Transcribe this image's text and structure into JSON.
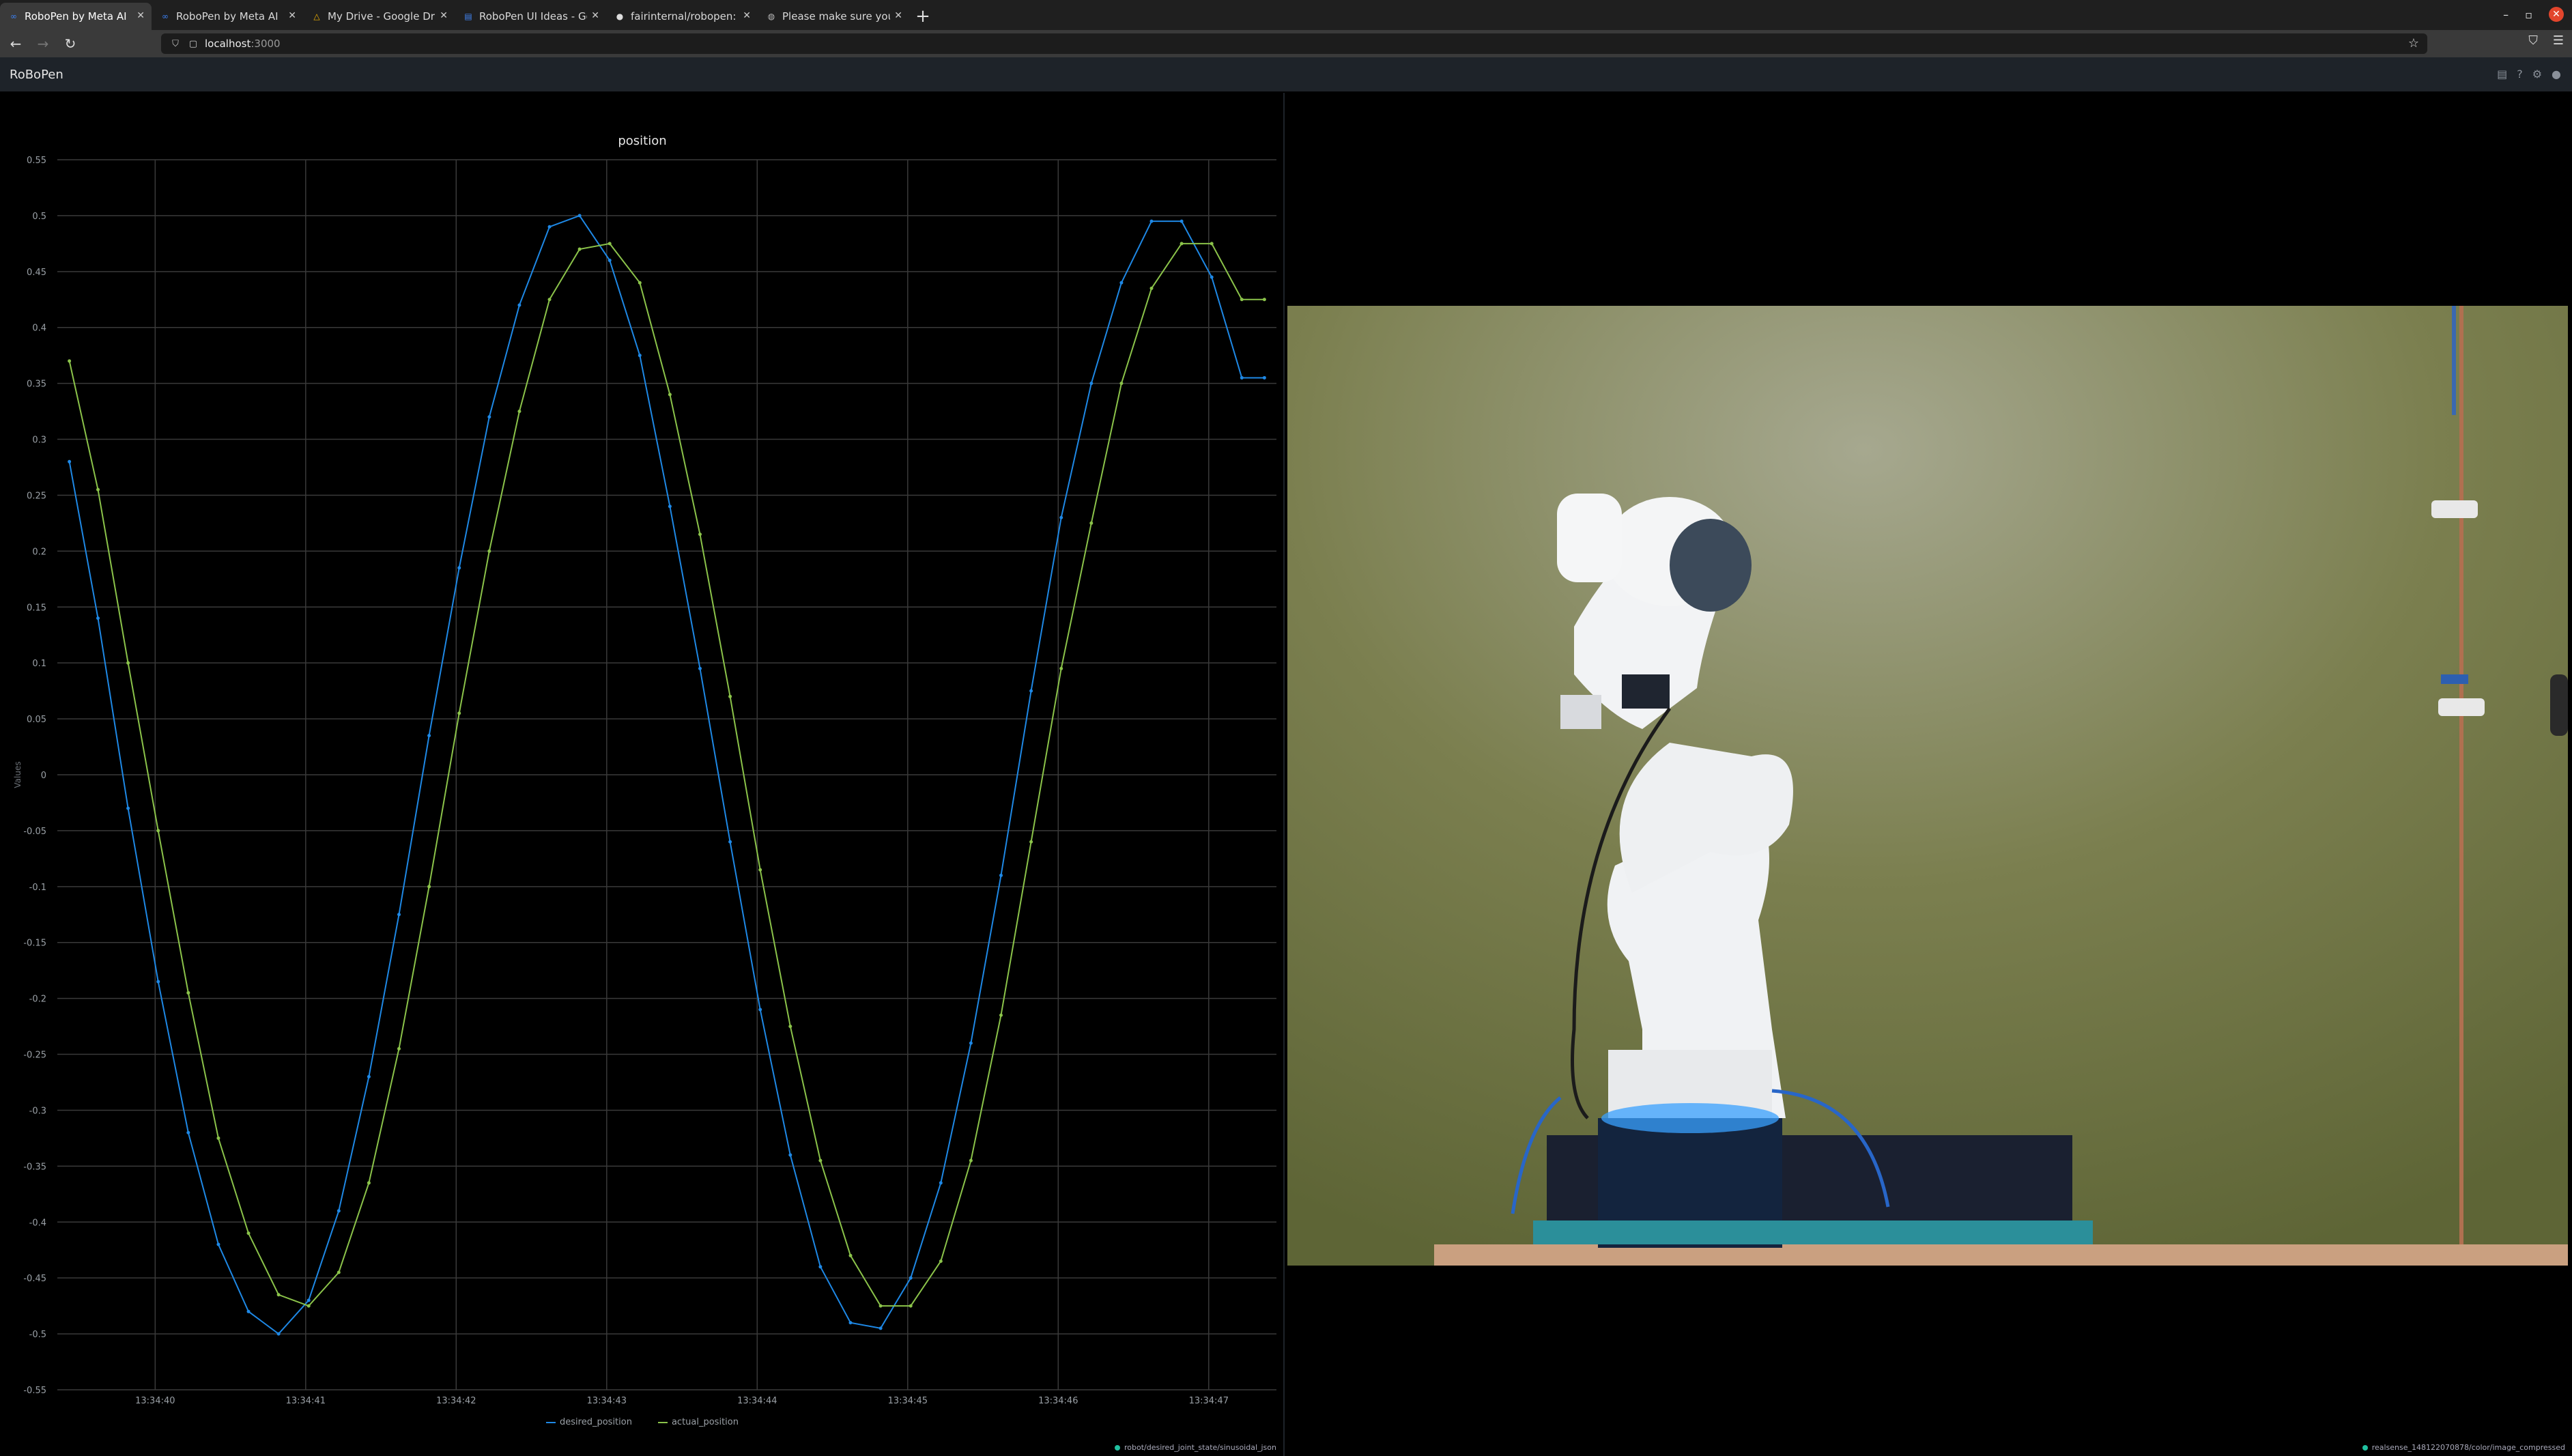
{
  "browser": {
    "tabs": [
      {
        "title": "RoboPen by Meta AI",
        "icon": "meta-logo-icon",
        "active": true
      },
      {
        "title": "RoboPen by Meta AI",
        "icon": "meta-logo-icon",
        "active": false
      },
      {
        "title": "My Drive - Google Drive",
        "icon": "google-drive-icon",
        "active": false
      },
      {
        "title": "RoboPen UI Ideas - Goog",
        "icon": "google-docs-icon",
        "active": false
      },
      {
        "title": "fairinternal/robopen: Ro",
        "icon": "github-icon",
        "active": false
      },
      {
        "title": "Please make sure you ha",
        "icon": "globe-icon",
        "active": false
      }
    ],
    "new_tab_label": "+",
    "url": {
      "host": "localhost",
      "port": ":3000"
    }
  },
  "app": {
    "title": "RoBoPen",
    "header_icons": [
      "layout-icon",
      "help-icon",
      "settings-icon",
      "github-icon"
    ]
  },
  "left_panel": {
    "entity_path": "robot/desired_joint_state/sinusoidal_json"
  },
  "right_panel": {
    "entity_path": "realsense_148122070878/color/image_compressed"
  },
  "chart_data": {
    "type": "line",
    "title": "position",
    "ylabel": "Values",
    "xlabel": "",
    "ylim": [
      -0.55,
      0.55
    ],
    "yticks": [
      0.55,
      0.5,
      0.45,
      0.4,
      0.35,
      0.3,
      0.25,
      0.2,
      0.15,
      0.1,
      0.05,
      0,
      -0.05,
      -0.1,
      -0.15,
      -0.2,
      -0.25,
      -0.3,
      -0.35,
      -0.4,
      -0.45,
      -0.5,
      -0.55
    ],
    "xlim": [
      39.35,
      47.45
    ],
    "xticks": [
      "13:34:40",
      "13:34:41",
      "13:34:42",
      "13:34:43",
      "13:34:44",
      "13:34:45",
      "13:34:46",
      "13:34:47"
    ],
    "xtick_values": [
      40,
      41,
      42,
      43,
      44,
      45,
      46,
      47
    ],
    "grid": true,
    "legend": "bottom-center",
    "series": [
      {
        "name": "desired_position",
        "color": "#1e88e5",
        "x": [
          39.43,
          39.62,
          39.82,
          40.02,
          40.22,
          40.42,
          40.62,
          40.82,
          41.02,
          41.22,
          41.42,
          41.62,
          41.82,
          42.02,
          42.22,
          42.42,
          42.62,
          42.82,
          43.02,
          43.22,
          43.42,
          43.62,
          43.82,
          44.02,
          44.22,
          44.42,
          44.62,
          44.82,
          45.02,
          45.22,
          45.42,
          45.62,
          45.82,
          46.02,
          46.22,
          46.42,
          46.62,
          46.82,
          47.02,
          47.22,
          47.37
        ],
        "y": [
          0.28,
          0.14,
          -0.03,
          -0.185,
          -0.32,
          -0.42,
          -0.48,
          -0.5,
          -0.47,
          -0.39,
          -0.27,
          -0.125,
          0.035,
          0.185,
          0.32,
          0.42,
          0.49,
          0.5,
          0.46,
          0.375,
          0.24,
          0.095,
          -0.06,
          -0.21,
          -0.34,
          -0.44,
          -0.49,
          -0.495,
          -0.45,
          -0.365,
          -0.24,
          -0.09,
          0.075,
          0.23,
          0.35,
          0.44,
          0.495,
          0.495,
          0.445,
          0.355,
          0.355
        ]
      },
      {
        "name": "actual_position",
        "color": "#8bc34a",
        "x": [
          39.43,
          39.62,
          39.82,
          40.02,
          40.22,
          40.42,
          40.62,
          40.82,
          41.02,
          41.22,
          41.42,
          41.62,
          41.82,
          42.02,
          42.22,
          42.42,
          42.62,
          42.82,
          43.02,
          43.22,
          43.42,
          43.62,
          43.82,
          44.02,
          44.22,
          44.42,
          44.62,
          44.82,
          45.02,
          45.22,
          45.42,
          45.62,
          45.82,
          46.02,
          46.22,
          46.42,
          46.62,
          46.82,
          47.02,
          47.22,
          47.37
        ],
        "y": [
          0.37,
          0.255,
          0.1,
          -0.05,
          -0.195,
          -0.325,
          -0.41,
          -0.465,
          -0.475,
          -0.445,
          -0.365,
          -0.245,
          -0.1,
          0.055,
          0.2,
          0.325,
          0.425,
          0.47,
          0.475,
          0.44,
          0.34,
          0.215,
          0.07,
          -0.085,
          -0.225,
          -0.345,
          -0.43,
          -0.475,
          -0.475,
          -0.435,
          -0.345,
          -0.215,
          -0.06,
          0.095,
          0.225,
          0.35,
          0.435,
          0.475,
          0.475,
          0.425,
          0.425
        ]
      }
    ]
  },
  "colors": {
    "chrome_bg": "#1f1f1f",
    "app_header_bg": "#1e2329",
    "grid": "#3a3a3a",
    "desired": "#1e88e5",
    "actual": "#8bc34a"
  }
}
